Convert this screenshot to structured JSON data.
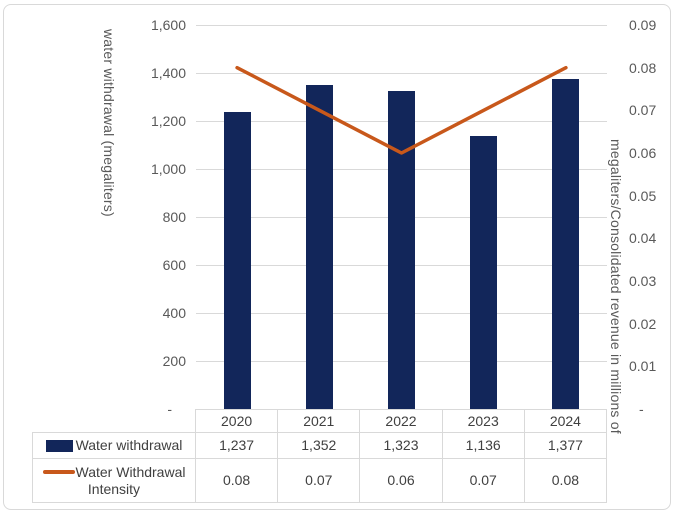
{
  "chart_data": {
    "type": "bar",
    "subtype": "combo bar + line, dual axis, with data table",
    "categories": [
      "2020",
      "2021",
      "2022",
      "2023",
      "2024"
    ],
    "series": [
      {
        "name": "Water withdrawal",
        "type": "bar",
        "axis": "left",
        "color": "#12265A",
        "values": [
          1237,
          1352,
          1323,
          1136,
          1377
        ],
        "display": [
          "1,237",
          "1,352",
          "1,323",
          "1,136",
          "1,377"
        ]
      },
      {
        "name": "Water Withdrawal Intensity",
        "type": "line",
        "axis": "right",
        "color": "#C8581B",
        "values": [
          0.08,
          0.07,
          0.06,
          0.07,
          0.08
        ],
        "display": [
          "0.08",
          "0.07",
          "0.06",
          "0.07",
          "0.08"
        ]
      }
    ],
    "left_axis": {
      "label": "water withdrawal (megaliters)",
      "min": 0,
      "max": 1600,
      "step": 200,
      "tick_labels": [
        "1,600",
        "1,400",
        "1,200",
        "1,000",
        "800",
        "600",
        "400",
        "200",
        "-"
      ]
    },
    "right_axis": {
      "label": "megaliters/Consolidated revenue in millions of",
      "min": 0,
      "max": 0.09,
      "step": 0.01,
      "tick_labels": [
        "0.09",
        "0.08",
        "0.07",
        "0.06",
        "0.05",
        "0.04",
        "0.03",
        "0.02",
        "0.01",
        "-"
      ]
    },
    "grid": true,
    "legend_position": "table rows left of data table",
    "colors": {
      "gridline": "#D9D9D9",
      "table_border": "#D9D9D9",
      "tick_text": "#595959",
      "table_text": "#404040",
      "chart_border": "#D9D9D9"
    }
  }
}
